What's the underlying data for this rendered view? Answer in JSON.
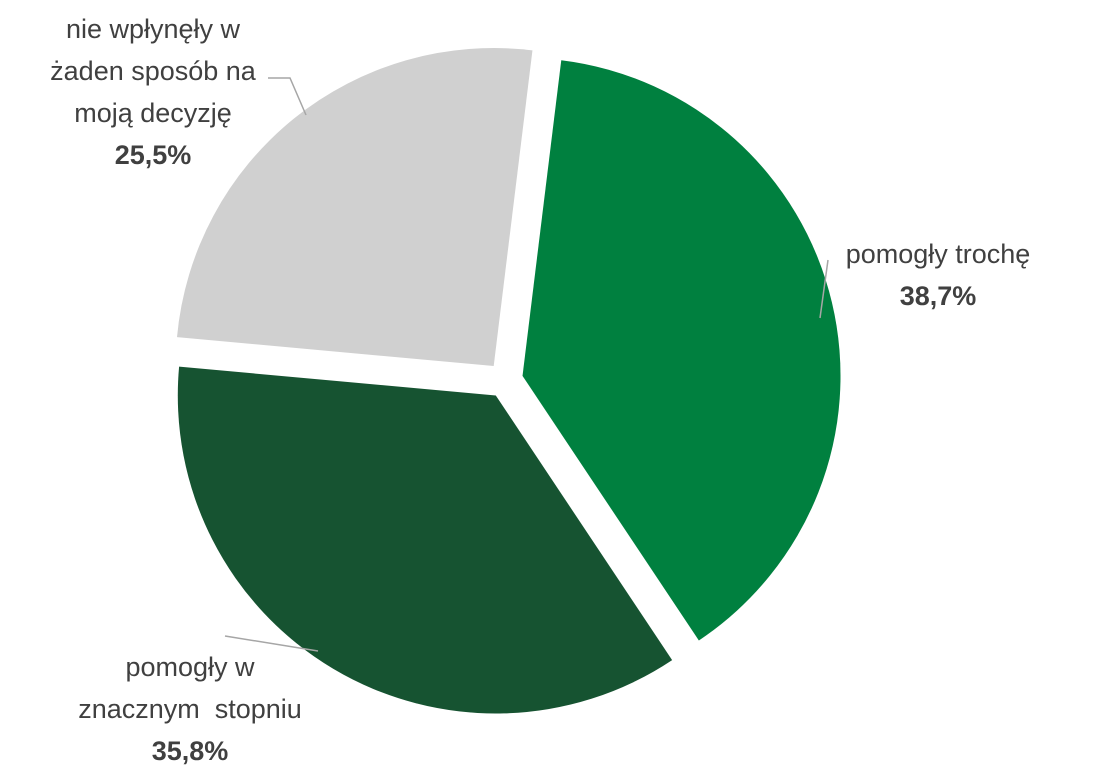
{
  "chart_data": {
    "type": "pie",
    "slices": [
      {
        "label_lines": [
          "pomogły trochę"
        ],
        "value": 38.7,
        "value_label": "38,7%",
        "color": "#00803f"
      },
      {
        "label_lines": [
          "pomogły w",
          "znacznym  stopniu"
        ],
        "value": 35.8,
        "value_label": "35,8%",
        "color": "#165331"
      },
      {
        "label_lines": [
          "nie wpłynęły w",
          "żaden sposób na",
          "moją decyzję"
        ],
        "value": 25.5,
        "value_label": "25,5%",
        "color": "#d0d0d0"
      }
    ],
    "exploded": true,
    "legend": "none"
  }
}
